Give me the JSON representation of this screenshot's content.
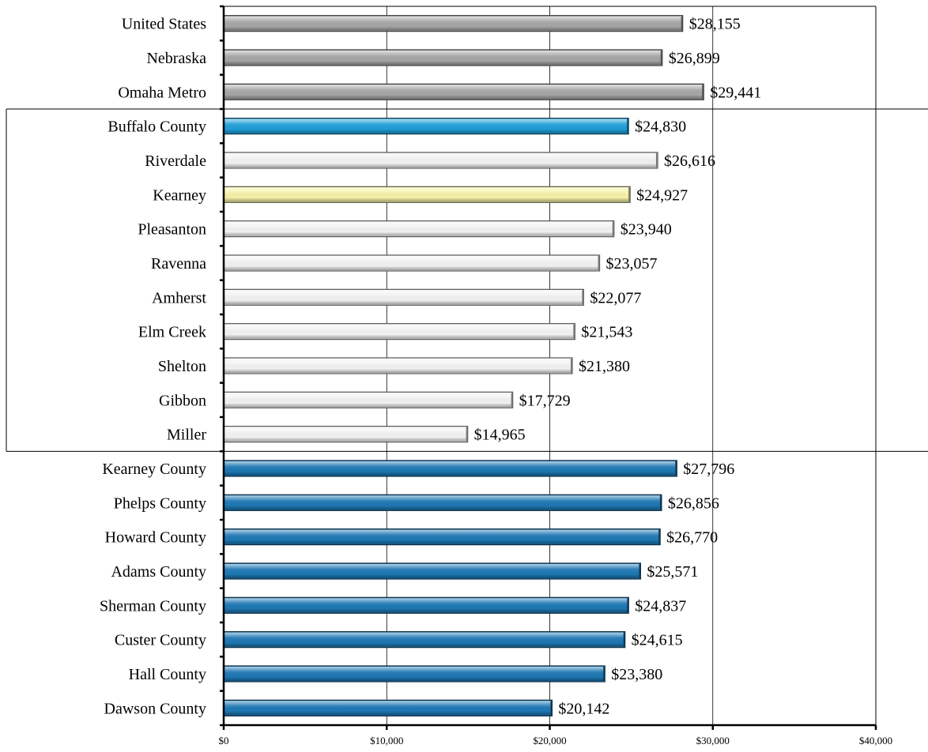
{
  "chart_data": {
    "type": "bar",
    "orientation": "horizontal",
    "categories": [
      "United States",
      "Nebraska",
      "Omaha Metro",
      "Buffalo County",
      "Riverdale",
      "Kearney",
      "Pleasanton",
      "Ravenna",
      "Amherst",
      "Elm Creek",
      "Shelton",
      "Gibbon",
      "Miller",
      "Kearney County",
      "Phelps County",
      "Howard County",
      "Adams County",
      "Sherman County",
      "Custer County",
      "Hall County",
      "Dawson County"
    ],
    "values": [
      28155,
      26899,
      29441,
      24830,
      26616,
      24927,
      23940,
      23057,
      22077,
      21543,
      21380,
      17729,
      14965,
      27796,
      26856,
      26770,
      25571,
      24837,
      24615,
      23380,
      20142
    ],
    "value_labels": [
      "$28,155",
      "$26,899",
      "$29,441",
      "$24,830",
      "$26,616",
      "$24,927",
      "$23,940",
      "$23,057",
      "$22,077",
      "$21,543",
      "$21,380",
      "$17,729",
      "$14,965",
      "$27,796",
      "$26,856",
      "$26,770",
      "$25,571",
      "$24,837",
      "$24,615",
      "$23,380",
      "$20,142"
    ],
    "groups": [
      "reference",
      "reference",
      "reference",
      "focus",
      "city",
      "highlight",
      "city",
      "city",
      "city",
      "city",
      "city",
      "city",
      "city",
      "region",
      "region",
      "region",
      "region",
      "region",
      "region",
      "region",
      "region"
    ],
    "colors": {
      "reference": "#a6a6a6",
      "focus": "#1e9ed8",
      "city": "#f2f2f2",
      "highlight": "#f6f2a8",
      "region": "#1e78b4"
    },
    "xlim": [
      0,
      40000
    ],
    "xticks": [
      0,
      10000,
      20000,
      30000,
      40000
    ],
    "xtick_labels": [
      "$0",
      "$10,000",
      "$20,000",
      "$30,000",
      "$40,000"
    ],
    "grid": true,
    "title": "",
    "xlabel": "",
    "ylabel": ""
  }
}
